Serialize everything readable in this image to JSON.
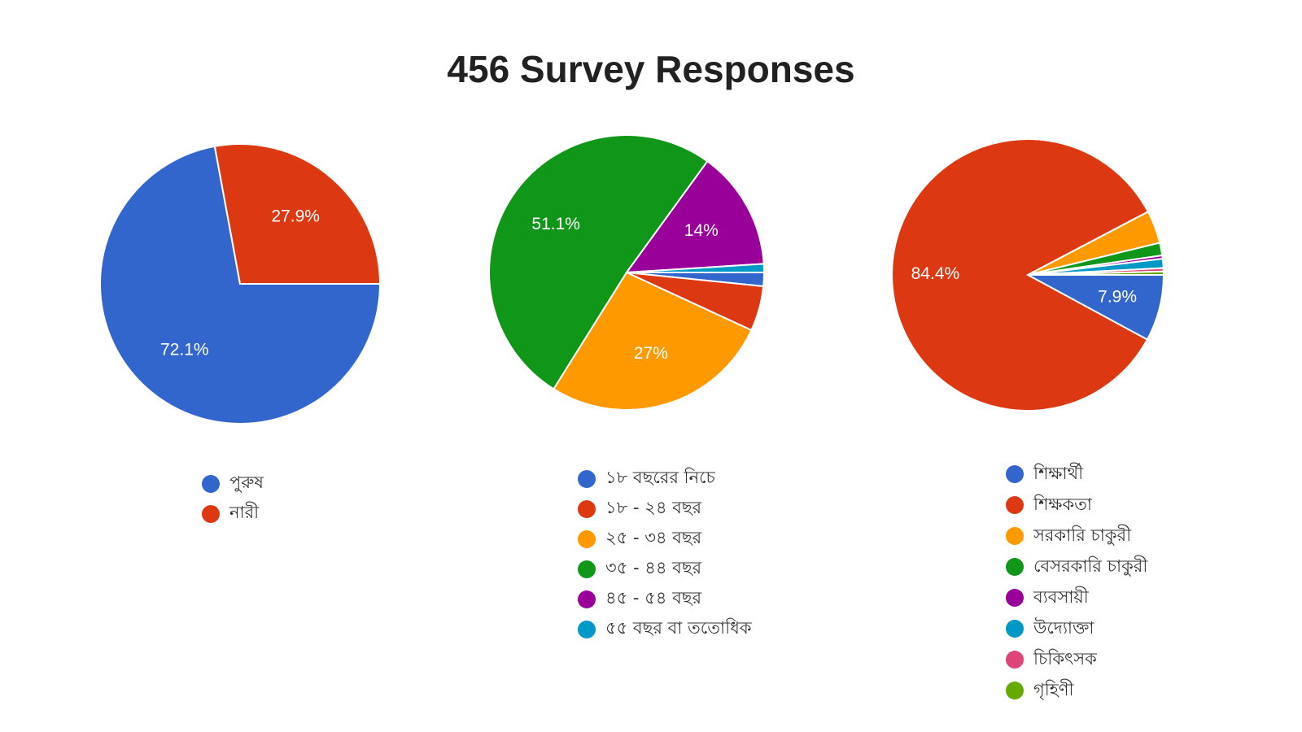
{
  "title": "456 Survey Responses",
  "chart_data": [
    {
      "type": "pie",
      "categories": [
        "পুরুষ",
        "নারী"
      ],
      "values": [
        72.1,
        27.9
      ],
      "colors": [
        "#3366cc",
        "#dc3912"
      ],
      "data_labels": [
        "72.1%",
        "27.9%"
      ],
      "legend_position": "bottom"
    },
    {
      "type": "pie",
      "categories": [
        "১৮ বছরের নিচে",
        "১৮ - ২৪ বছর",
        "২৫ - ৩৪ বছর",
        "৩৫ - ৪৪ বছর",
        "৪৫ - ৫৪ বছর",
        "৫৫ বছর বা ততোধিক"
      ],
      "values": [
        1.6,
        5.3,
        27,
        51.1,
        14,
        1.0
      ],
      "colors": [
        "#3366cc",
        "#dc3912",
        "#ff9900",
        "#109618",
        "#990099",
        "#0099c6"
      ],
      "data_labels": [
        "",
        "",
        "27%",
        "51.1%",
        "14%",
        ""
      ],
      "legend_position": "bottom"
    },
    {
      "type": "pie",
      "categories": [
        "শিক্ষার্থী",
        "শিক্ষকতা",
        "সরকারি চাকুরী",
        "বেসরকারি চাকুরী",
        "ব্যবসায়ী",
        "উদ্যোক্তা",
        "চিকিৎসক",
        "গৃহিণী"
      ],
      "values": [
        7.9,
        84.4,
        3.9,
        1.5,
        0.4,
        1.1,
        0.4,
        0.4
      ],
      "colors": [
        "#3366cc",
        "#dc3912",
        "#ff9900",
        "#109618",
        "#990099",
        "#0099c6",
        "#dd4477",
        "#66aa00"
      ],
      "data_labels": [
        "7.9%",
        "84.4%",
        "",
        "",
        "",
        "",
        "",
        ""
      ],
      "legend_position": "bottom"
    }
  ]
}
